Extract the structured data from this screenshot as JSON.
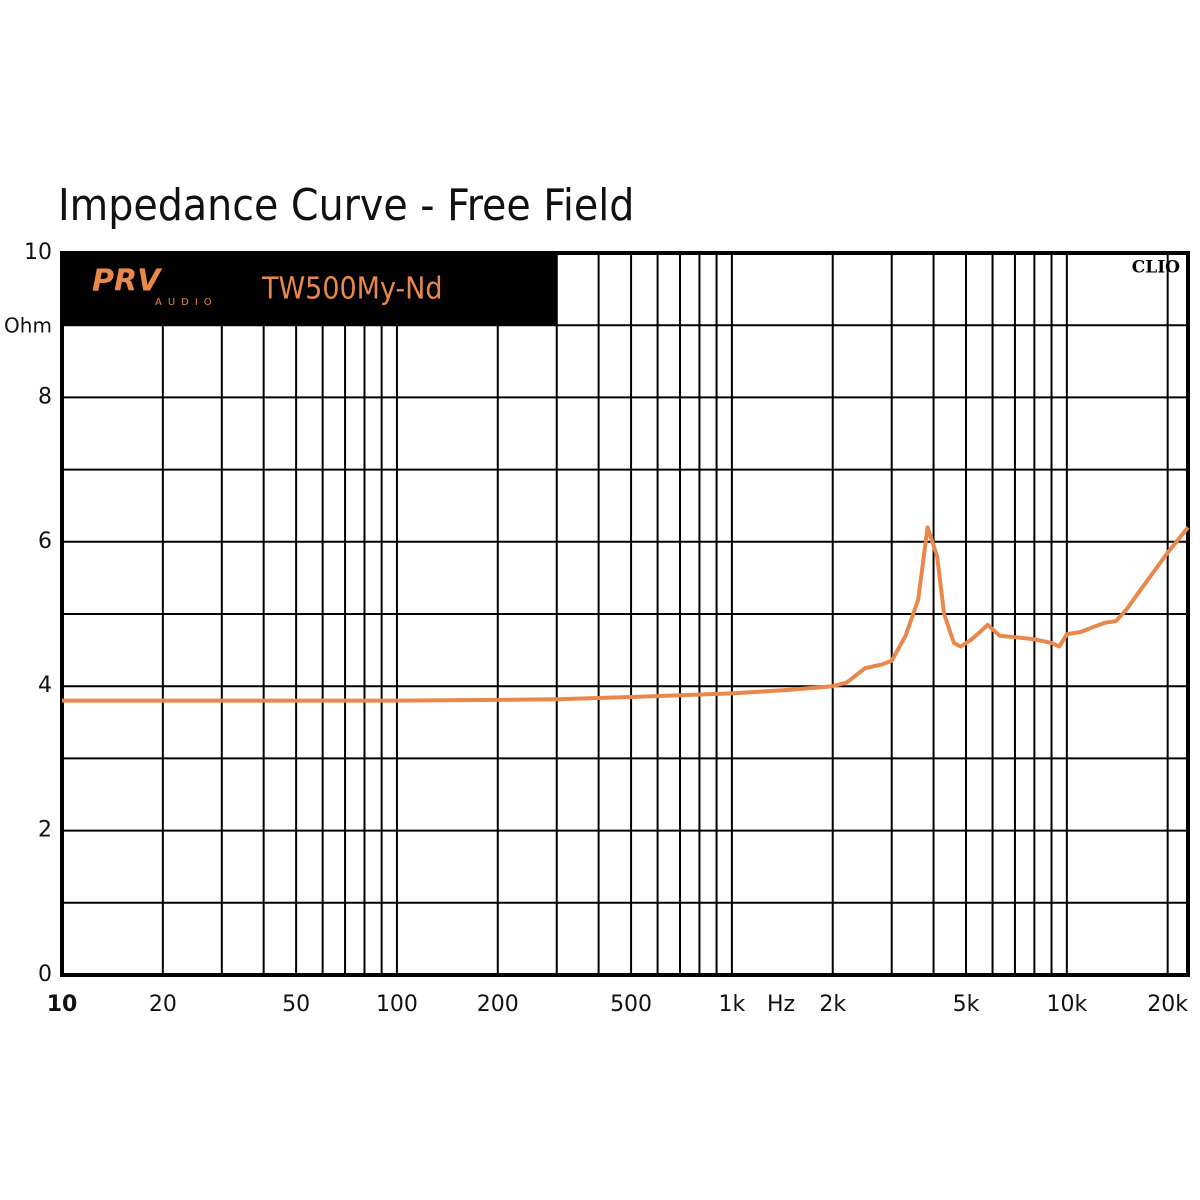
{
  "chart_data": {
    "type": "line",
    "title": "Impedance Curve - Free Field",
    "brand": "PRV",
    "brand_sub": "AUDIO",
    "model": "TW500My-Nd",
    "watermark": "CLIO",
    "x_label": "Hz",
    "y_label": "Ohm",
    "log_x": true,
    "grid": true,
    "color": "#e8884a",
    "x": [
      10,
      20,
      50,
      100,
      200,
      300,
      500,
      1000,
      1500,
      2000,
      2200,
      2500,
      2800,
      3000,
      3300,
      3600,
      3840,
      4100,
      4300,
      4600,
      4820,
      5200,
      5500,
      5800,
      6300,
      7000,
      8000,
      9000,
      9500,
      10000,
      11000,
      12000,
      13000,
      14000,
      15000,
      17000,
      20000,
      23000
    ],
    "values": [
      3.8,
      3.8,
      3.8,
      3.8,
      3.81,
      3.82,
      3.85,
      3.9,
      3.95,
      4.0,
      4.05,
      4.25,
      4.3,
      4.35,
      4.7,
      5.2,
      6.2,
      5.8,
      5.0,
      4.6,
      4.55,
      4.65,
      4.75,
      4.85,
      4.7,
      4.68,
      4.65,
      4.6,
      4.55,
      4.72,
      4.75,
      4.82,
      4.88,
      4.9,
      5.05,
      5.4,
      5.85,
      6.2
    ],
    "xlim": [
      10,
      23000
    ],
    "xticks": [
      10,
      20,
      50,
      100,
      200,
      500,
      {
        "value": 1000,
        "label": "1k"
      },
      {
        "value": 2000,
        "label": "2k"
      },
      {
        "value": 5000,
        "label": "5k"
      },
      {
        "value": 10000,
        "label": "10k"
      },
      {
        "value": 20000,
        "label": "20k"
      }
    ],
    "x_minor_ticks": [
      30,
      40,
      60,
      70,
      80,
      90,
      300,
      400,
      600,
      700,
      800,
      900,
      3000,
      4000,
      6000,
      7000,
      8000,
      9000
    ],
    "ylim": [
      0,
      10
    ],
    "yticks": [
      0,
      2,
      4,
      6,
      8,
      10
    ],
    "y_minor_ticks": [
      1,
      3,
      5,
      7,
      9
    ]
  }
}
